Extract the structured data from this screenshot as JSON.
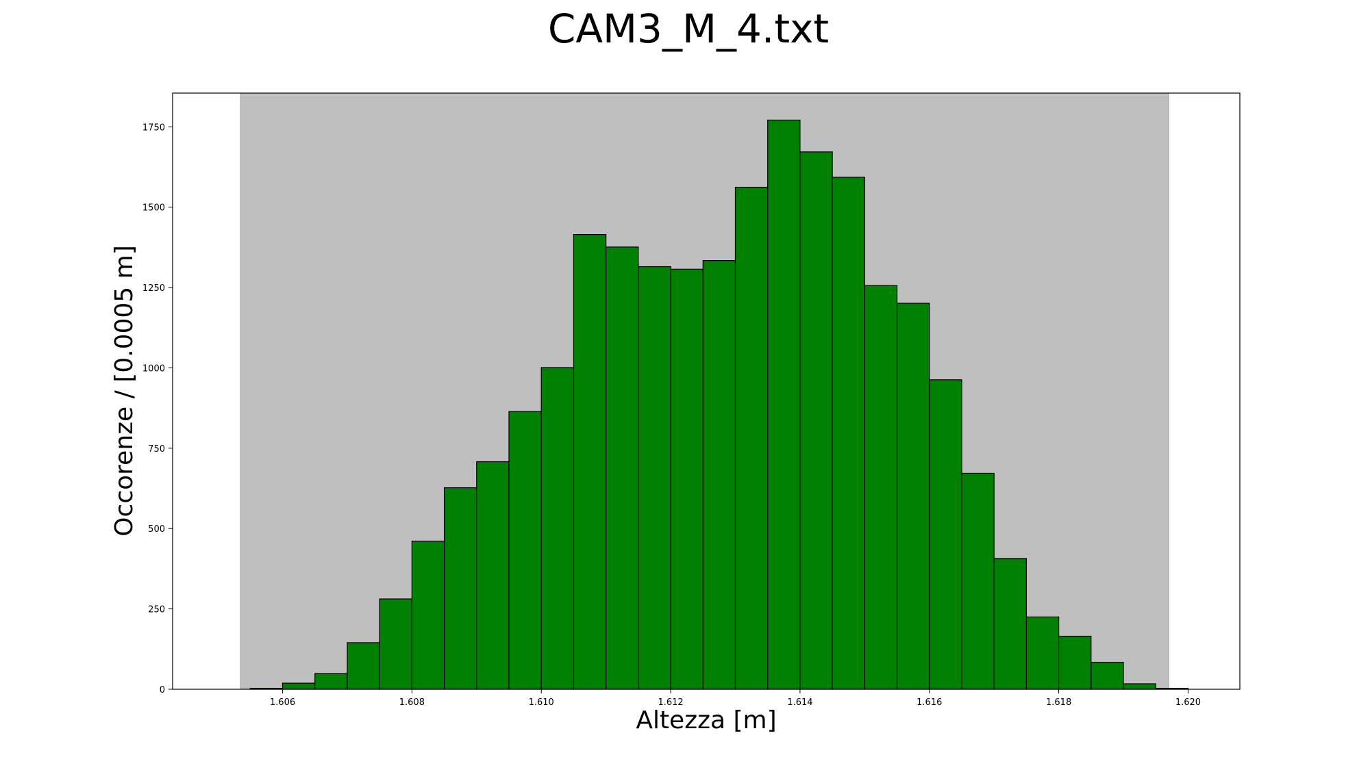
{
  "chart_data": {
    "type": "bar",
    "title": "CAM3_M_4.txt",
    "xlabel": "Altezza [m]",
    "ylabel": "Occorenze / [0.0005 m]",
    "xlim": [
      1.6043,
      1.6208
    ],
    "ylim": [
      0,
      1855
    ],
    "grid": false,
    "legend": "none",
    "bin_width": 0.0005,
    "shaded_region": {
      "x_start": 1.60535,
      "x_end": 1.6197,
      "color": "#bfbfbf"
    },
    "bar_color": "#008000",
    "bar_edge_color": "#000000",
    "bins": [
      {
        "x_left": 1.605,
        "value": 0
      },
      {
        "x_left": 1.6055,
        "value": 3
      },
      {
        "x_left": 1.606,
        "value": 19
      },
      {
        "x_left": 1.6065,
        "value": 49
      },
      {
        "x_left": 1.607,
        "value": 145
      },
      {
        "x_left": 1.6075,
        "value": 281
      },
      {
        "x_left": 1.608,
        "value": 461
      },
      {
        "x_left": 1.6085,
        "value": 627
      },
      {
        "x_left": 1.609,
        "value": 708
      },
      {
        "x_left": 1.6095,
        "value": 864
      },
      {
        "x_left": 1.61,
        "value": 1001
      },
      {
        "x_left": 1.6105,
        "value": 1415
      },
      {
        "x_left": 1.611,
        "value": 1376
      },
      {
        "x_left": 1.6115,
        "value": 1315
      },
      {
        "x_left": 1.612,
        "value": 1307
      },
      {
        "x_left": 1.6125,
        "value": 1334
      },
      {
        "x_left": 1.613,
        "value": 1562
      },
      {
        "x_left": 1.6135,
        "value": 1771
      },
      {
        "x_left": 1.614,
        "value": 1672
      },
      {
        "x_left": 1.6145,
        "value": 1593
      },
      {
        "x_left": 1.615,
        "value": 1256
      },
      {
        "x_left": 1.6155,
        "value": 1201
      },
      {
        "x_left": 1.616,
        "value": 963
      },
      {
        "x_left": 1.6165,
        "value": 672
      },
      {
        "x_left": 1.617,
        "value": 407
      },
      {
        "x_left": 1.6175,
        "value": 225
      },
      {
        "x_left": 1.618,
        "value": 165
      },
      {
        "x_left": 1.6185,
        "value": 84
      },
      {
        "x_left": 1.619,
        "value": 17
      },
      {
        "x_left": 1.6195,
        "value": 3
      }
    ],
    "x_ticks": [
      {
        "value": 1.606,
        "label": "1.606"
      },
      {
        "value": 1.608,
        "label": "1.608"
      },
      {
        "value": 1.61,
        "label": "1.610"
      },
      {
        "value": 1.612,
        "label": "1.612"
      },
      {
        "value": 1.614,
        "label": "1.614"
      },
      {
        "value": 1.616,
        "label": "1.616"
      },
      {
        "value": 1.618,
        "label": "1.618"
      },
      {
        "value": 1.62,
        "label": "1.620"
      }
    ],
    "y_ticks": [
      {
        "value": 0,
        "label": "0"
      },
      {
        "value": 250,
        "label": "250"
      },
      {
        "value": 500,
        "label": "500"
      },
      {
        "value": 750,
        "label": "750"
      },
      {
        "value": 1000,
        "label": "1000"
      },
      {
        "value": 1250,
        "label": "1250"
      },
      {
        "value": 1500,
        "label": "1500"
      },
      {
        "value": 1750,
        "label": "1750"
      }
    ]
  }
}
